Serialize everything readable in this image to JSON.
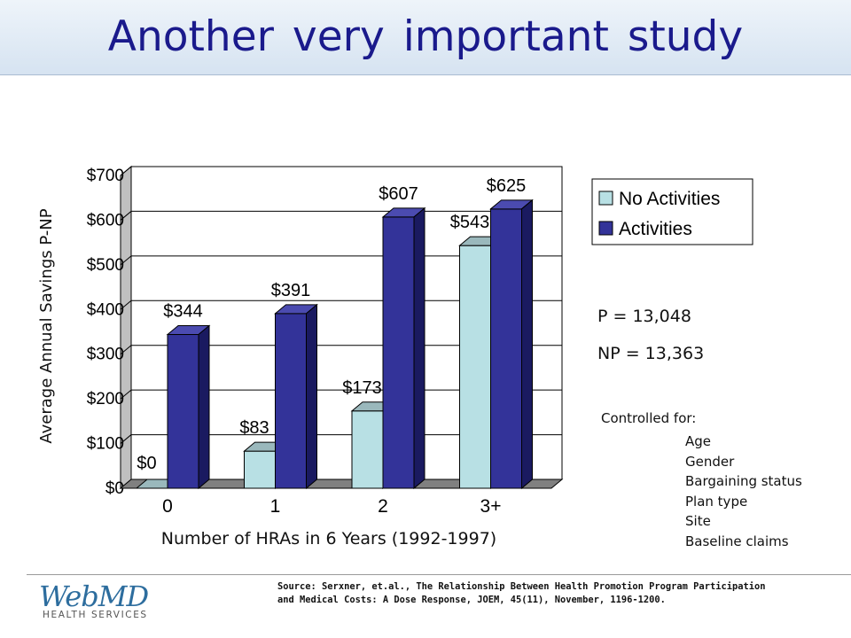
{
  "slide": {
    "title": "Another very important study",
    "stats": {
      "p": "P    = 13,048",
      "np": "NP = 13,363"
    },
    "controlled_for_title": "Controlled for:",
    "controlled_for": [
      "Age",
      "Gender",
      "Bargaining status",
      "Plan type",
      "Site",
      "Baseline claims"
    ],
    "source": "Source: Serxner, et.al., The Relationship Between Health Promotion Program Participation and Medical Costs: A Dose Response, JOEM, 45(11), November, 1196-1200.",
    "logo": {
      "main": "WebMD",
      "sub": "HEALTH SERVICES"
    }
  },
  "chart_data": {
    "type": "bar",
    "style": "3d-clustered",
    "categories": [
      "0",
      "1",
      "2",
      "3+"
    ],
    "series": [
      {
        "name": "No Activities",
        "values": [
          0,
          83,
          173,
          543
        ],
        "labels": [
          "$0",
          "$83",
          "$173",
          "$543"
        ],
        "color": "#b8e0e4"
      },
      {
        "name": "Activities",
        "values": [
          344,
          391,
          607,
          625
        ],
        "labels": [
          "$344",
          "$391",
          "$607",
          "$625"
        ],
        "color": "#333399"
      }
    ],
    "ylabel": "Average Annual Savings P-NP",
    "xlabel": "Number of HRAs in 6 Years (1992-1997)",
    "ylim": [
      0,
      700
    ],
    "yticks": [
      0,
      100,
      200,
      300,
      400,
      500,
      600,
      700
    ],
    "ytick_labels": [
      "$0",
      "$100",
      "$200",
      "$300",
      "$400",
      "$500",
      "$600",
      "$700"
    ],
    "grid": true,
    "legend_position": "right"
  }
}
